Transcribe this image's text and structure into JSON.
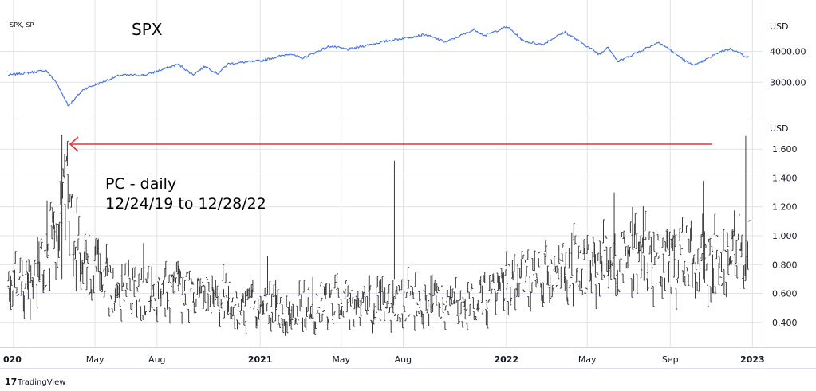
{
  "header": {
    "symbol": "SPX, SP",
    "title": "SPX"
  },
  "annotation": {
    "line1": "PC - daily",
    "line2": "12/24/19 to 12/28/22"
  },
  "brand": {
    "logo": "17",
    "name": "TradingView"
  },
  "colors": {
    "spx": "#4a78e0",
    "pc": "#3a3a3a",
    "arrow": "#e8333a",
    "grid": "#e0e3eb"
  },
  "chart_data": [
    {
      "type": "line",
      "series": [
        {
          "values": [
            {
              "x": "2019-12-24",
              "y": 3223
            },
            {
              "x": "2020-01-15",
              "y": 3290
            },
            {
              "x": "2020-02-19",
              "y": 3380
            },
            {
              "x": "2020-03-05",
              "y": 3000
            },
            {
              "x": "2020-03-23",
              "y": 2240
            },
            {
              "x": "2020-04-15",
              "y": 2780
            },
            {
              "x": "2020-06-08",
              "y": 3230
            },
            {
              "x": "2020-07-15",
              "y": 3230
            },
            {
              "x": "2020-09-02",
              "y": 3580
            },
            {
              "x": "2020-09-24",
              "y": 3240
            },
            {
              "x": "2020-10-12",
              "y": 3530
            },
            {
              "x": "2020-10-30",
              "y": 3270
            },
            {
              "x": "2020-11-15",
              "y": 3600
            },
            {
              "x": "2021-01-04",
              "y": 3700
            },
            {
              "x": "2021-02-15",
              "y": 3930
            },
            {
              "x": "2021-03-04",
              "y": 3770
            },
            {
              "x": "2021-04-15",
              "y": 4170
            },
            {
              "x": "2021-05-12",
              "y": 4060
            },
            {
              "x": "2021-06-30",
              "y": 4300
            },
            {
              "x": "2021-08-15",
              "y": 4470
            },
            {
              "x": "2021-09-02",
              "y": 4540
            },
            {
              "x": "2021-10-04",
              "y": 4300
            },
            {
              "x": "2021-11-15",
              "y": 4700
            },
            {
              "x": "2021-12-01",
              "y": 4510
            },
            {
              "x": "2022-01-03",
              "y": 4800
            },
            {
              "x": "2022-01-27",
              "y": 4330
            },
            {
              "x": "2022-02-24",
              "y": 4220
            },
            {
              "x": "2022-03-29",
              "y": 4630
            },
            {
              "x": "2022-05-20",
              "y": 3900
            },
            {
              "x": "2022-06-01",
              "y": 4150
            },
            {
              "x": "2022-06-16",
              "y": 3670
            },
            {
              "x": "2022-08-16",
              "y": 4300
            },
            {
              "x": "2022-09-30",
              "y": 3600
            },
            {
              "x": "2022-10-12",
              "y": 3580
            },
            {
              "x": "2022-11-15",
              "y": 4000
            },
            {
              "x": "2022-12-01",
              "y": 4080
            },
            {
              "x": "2022-12-28",
              "y": 3780
            }
          ]
        }
      ],
      "xlabel": "",
      "ylabel": "USD",
      "ylim": [
        1900,
        5300
      ],
      "y_ticks": [
        "4000.00",
        "3000.00"
      ],
      "grid": true
    },
    {
      "type": "bar",
      "series": [
        {
          "values": [
            {
              "x": "2019-12-24",
              "y": 0.62
            },
            {
              "x": "2020-01-20",
              "y": 0.7
            },
            {
              "x": "2020-02-20",
              "y": 0.82
            },
            {
              "x": "2020-03-05",
              "y": 1.1
            },
            {
              "x": "2020-03-16",
              "y": 1.35
            },
            {
              "x": "2020-03-27",
              "y": 1.1
            },
            {
              "x": "2020-04-20",
              "y": 0.78
            },
            {
              "x": "2020-06-01",
              "y": 0.62
            },
            {
              "x": "2020-07-15",
              "y": 0.56
            },
            {
              "x": "2020-09-10",
              "y": 0.62
            },
            {
              "x": "2020-11-01",
              "y": 0.58
            },
            {
              "x": "2021-01-01",
              "y": 0.48
            },
            {
              "x": "2021-03-01",
              "y": 0.5
            },
            {
              "x": "2021-05-01",
              "y": 0.55
            },
            {
              "x": "2021-07-01",
              "y": 0.52
            },
            {
              "x": "2021-09-01",
              "y": 0.56
            },
            {
              "x": "2021-11-01",
              "y": 0.5
            },
            {
              "x": "2022-01-01",
              "y": 0.68
            },
            {
              "x": "2022-03-01",
              "y": 0.72
            },
            {
              "x": "2022-05-01",
              "y": 0.8
            },
            {
              "x": "2022-07-01",
              "y": 0.82
            },
            {
              "x": "2022-09-01",
              "y": 0.84
            },
            {
              "x": "2022-11-01",
              "y": 0.82
            },
            {
              "x": "2022-12-15",
              "y": 0.86
            },
            {
              "x": "2022-12-28",
              "y": 0.95
            }
          ]
        }
      ],
      "spikes": [
        {
          "x": "2020-03-13",
          "y": 1.7
        },
        {
          "x": "2021-07-19",
          "y": 1.52
        },
        {
          "x": "2022-06-10",
          "y": 1.3
        },
        {
          "x": "2022-10-20",
          "y": 1.38
        },
        {
          "x": "2022-12-22",
          "y": 1.69
        }
      ],
      "xlabel": "",
      "ylabel": "USD",
      "ylim": [
        0.25,
        1.75
      ],
      "y_ticks": [
        "1.600",
        "1.400",
        "1.200",
        "1.000",
        "0.800",
        "0.600",
        "0.400"
      ],
      "x_ticks": [
        {
          "date": "2020-01-01",
          "label": "020",
          "bold": true
        },
        {
          "date": "2020-05-01",
          "label": "May",
          "bold": false
        },
        {
          "date": "2020-08-01",
          "label": "Aug",
          "bold": false
        },
        {
          "date": "2021-01-01",
          "label": "2021",
          "bold": true
        },
        {
          "date": "2021-05-01",
          "label": "May",
          "bold": false
        },
        {
          "date": "2021-08-01",
          "label": "Aug",
          "bold": false
        },
        {
          "date": "2022-01-01",
          "label": "2022",
          "bold": true
        },
        {
          "date": "2022-05-01",
          "label": "May",
          "bold": false
        },
        {
          "date": "2022-09-01",
          "label": "Sep",
          "bold": false
        },
        {
          "date": "2023-01-01",
          "label": "2023",
          "bold": true
        }
      ],
      "grid": true
    }
  ]
}
